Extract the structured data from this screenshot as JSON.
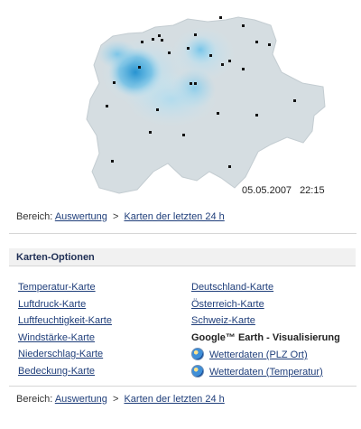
{
  "map": {
    "timestamp_date": "05.05.2007",
    "timestamp_time": "22:15"
  },
  "breadcrumb": {
    "prefix": "Bereich:",
    "link1": "Auswertung",
    "separator": ">",
    "link2": "Karten der letzten 24 h"
  },
  "options": {
    "title": "Karten-Optionen",
    "left": [
      "Temperatur-Karte",
      "Luftdruck-Karte",
      "Luftfeuchtigkeit-Karte",
      "Windstärke-Karte",
      "Niederschlag-Karte",
      "Bedeckung-Karte"
    ],
    "right": {
      "deutschland": "Deutschland-Karte",
      "oesterreich": "Österreich-Karte",
      "schweiz": "Schweiz-Karte",
      "earth_heading": "Google™ Earth - Visualisierung",
      "wetter_plz": "Wetterdaten (PLZ Ort)",
      "wetter_temp": "Wetterdaten (Temperatur)"
    }
  },
  "colors": {
    "land": "#d5dde1",
    "precip_light": "#9fd4ec",
    "precip_heavy": "#1f8fcf",
    "link": "#1f3e7a"
  }
}
